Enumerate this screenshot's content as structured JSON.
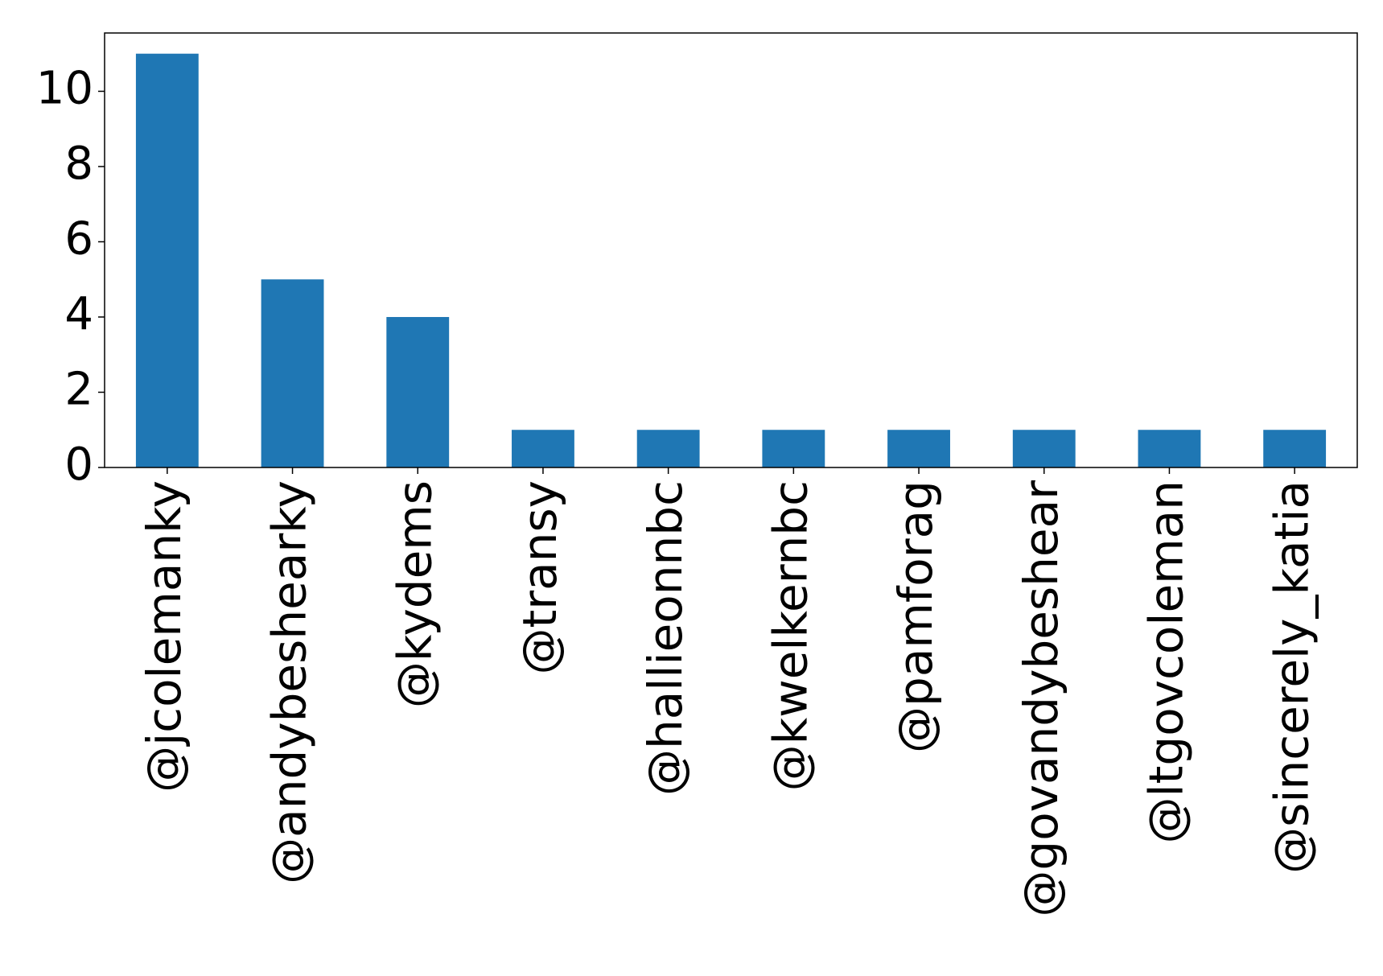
{
  "chart_data": {
    "type": "bar",
    "categories": [
      "@jcolemanky",
      "@andybeshearky",
      "@kydems",
      "@transy",
      "@hallieonnbc",
      "@kwelkernbc",
      "@pamforag",
      "@govandybeshear",
      "@ltgovcoleman",
      "@sincerely_katia"
    ],
    "values": [
      11,
      5,
      4,
      1,
      1,
      1,
      1,
      1,
      1,
      1
    ],
    "color": "#1f77b4",
    "ylim": [
      0,
      11.55
    ],
    "yticks": [
      0,
      2,
      4,
      6,
      8,
      10
    ],
    "grid": false
  }
}
